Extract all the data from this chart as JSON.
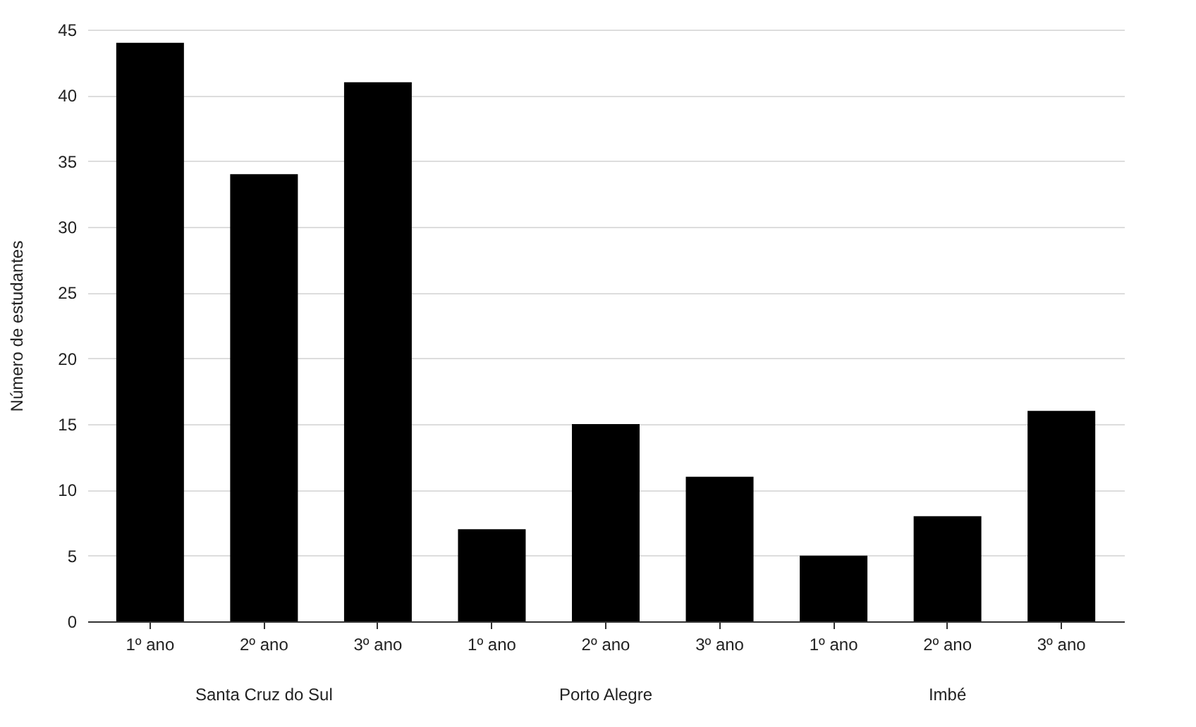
{
  "chart_data": {
    "type": "bar",
    "ylabel": "Número de estudantes",
    "categories": [
      "1º ano",
      "2º ano",
      "3º ano",
      "1º ano",
      "2º ano",
      "3º ano",
      "1º ano",
      "2º ano",
      "3º ano"
    ],
    "values": [
      44,
      34,
      41,
      7,
      15,
      11,
      5,
      8,
      16
    ],
    "color": "#000000",
    "ylim": [
      0,
      45
    ],
    "yticks": [
      0,
      5,
      10,
      15,
      20,
      25,
      30,
      35,
      40,
      45
    ],
    "grid": "y",
    "annotations": [
      "Santa Cruz do Sul",
      "Porto Alegre",
      "Imbé"
    ]
  }
}
